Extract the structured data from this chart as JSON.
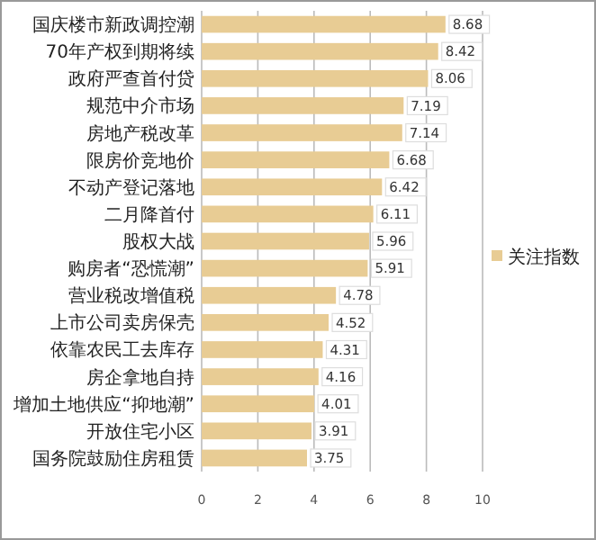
{
  "chart_data": {
    "type": "bar",
    "orientation": "horizontal",
    "categories": [
      "国庆楼市新政调控潮",
      "70年产权到期将续",
      "政府严查首付贷",
      "规范中介市场",
      "房地产税改革",
      "限房价竞地价",
      "不动产登记落地",
      "二月降首付",
      "股权大战",
      "购房者“恐慌潮”",
      "营业税改增值税",
      "上市公司卖房保壳",
      "依靠农民工去库存",
      "房企拿地自持",
      "增加土地供应“抑地潮”",
      "开放住宅小区",
      "国务院鼓励住房租赁"
    ],
    "series": [
      {
        "name": "关注指数",
        "color": "#e8cc94",
        "values": [
          8.68,
          8.42,
          8.06,
          7.19,
          7.14,
          6.68,
          6.42,
          6.11,
          5.96,
          5.91,
          4.78,
          4.52,
          4.31,
          4.16,
          4.01,
          3.91,
          3.75
        ]
      }
    ],
    "xlim": [
      0,
      10
    ],
    "xticks": [
      0,
      2,
      4,
      6,
      8,
      10
    ],
    "grid": "x",
    "legend": "right",
    "data_labels": true
  }
}
